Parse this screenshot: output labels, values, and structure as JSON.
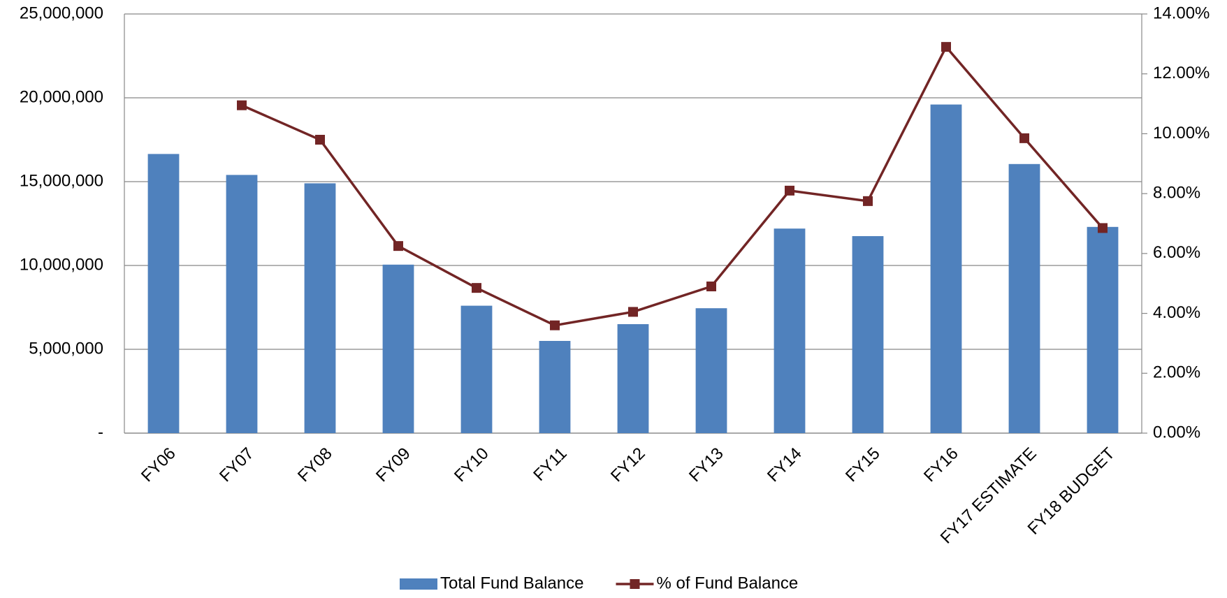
{
  "chart_data": {
    "type": "bar",
    "categories": [
      "FY06",
      "FY07",
      "FY08",
      "FY09",
      "FY10",
      "FY11",
      "FY12",
      "FY13",
      "FY14",
      "FY15",
      "FY16",
      "FY17 ESTIMATE",
      "FY18 BUDGET"
    ],
    "series": [
      {
        "name": "Total Fund Balance",
        "type": "bar",
        "color": "#4f81bd",
        "values": [
          16650000,
          15400000,
          14900000,
          10050000,
          7600000,
          5500000,
          6500000,
          7450000,
          12200000,
          11750000,
          19600000,
          16050000,
          12300000
        ]
      },
      {
        "name": "% of Fund Balance",
        "type": "line",
        "axis": "y2",
        "color": "#722525",
        "values": [
          null,
          10.95,
          9.8,
          6.25,
          4.85,
          3.6,
          4.05,
          4.9,
          8.1,
          7.75,
          12.9,
          9.85,
          6.85
        ]
      }
    ],
    "ylim": [
      0,
      25000000
    ],
    "yticks": [
      {
        "value": 0,
        "label": "-"
      },
      {
        "value": 5000000,
        "label": "5,000,000"
      },
      {
        "value": 10000000,
        "label": "10,000,000"
      },
      {
        "value": 15000000,
        "label": "15,000,000"
      },
      {
        "value": 20000000,
        "label": "20,000,000"
      },
      {
        "value": 25000000,
        "label": "25,000,000"
      }
    ],
    "y2lim": [
      0,
      14
    ],
    "y2ticks": [
      {
        "value": 0,
        "label": "0.00%"
      },
      {
        "value": 2,
        "label": "2.00%"
      },
      {
        "value": 4,
        "label": "4.00%"
      },
      {
        "value": 6,
        "label": "6.00%"
      },
      {
        "value": 8,
        "label": "8.00%"
      },
      {
        "value": 10,
        "label": "10.00%"
      },
      {
        "value": 12,
        "label": "12.00%"
      },
      {
        "value": 14,
        "label": "14.00%"
      }
    ],
    "grid": true,
    "legend": "bottom"
  }
}
